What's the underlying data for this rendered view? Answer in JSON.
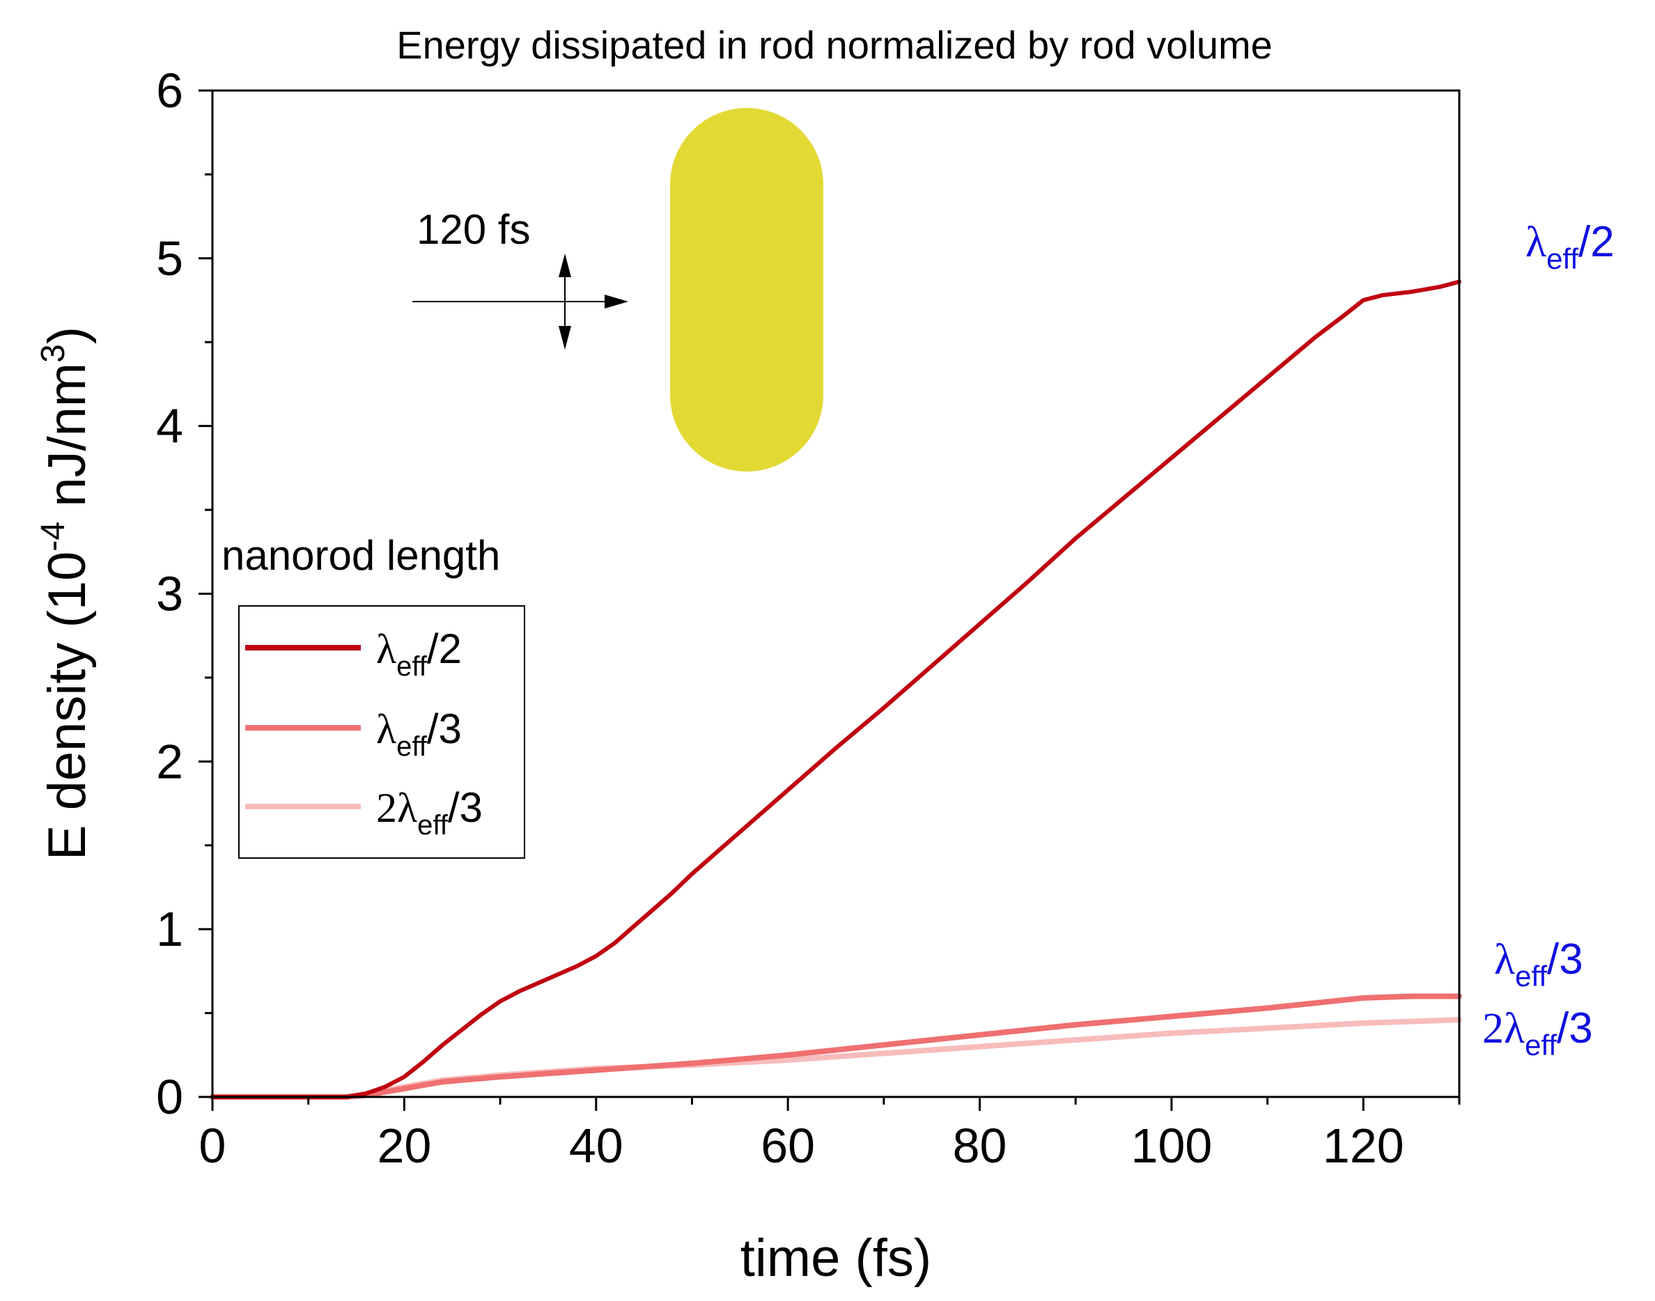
{
  "chart_data": {
    "type": "line",
    "title": "Energy dissipated in rod normalized by rod volume",
    "xlabel": "time (fs)",
    "ylabel": {
      "main": "E density (10",
      "exp": "-4",
      "unit": " nJ/nm",
      "unit_exp": "3",
      "close": ")"
    },
    "xlim": [
      0,
      130
    ],
    "ylim": [
      0,
      6
    ],
    "xticks": [
      0,
      20,
      40,
      60,
      80,
      100,
      120
    ],
    "yticks": [
      0,
      1,
      2,
      3,
      4,
      5,
      6
    ],
    "legend": {
      "title": "nanorod length",
      "position": "left-center"
    },
    "series": [
      {
        "name": "λeff/2",
        "label_pre": "",
        "label_base": "λ",
        "label_sub": "eff",
        "label_post": "/2",
        "color": "#c00010",
        "x": [
          0,
          10,
          14,
          16,
          18,
          20,
          22,
          24,
          26,
          28,
          30,
          32,
          34,
          36,
          38,
          40,
          42,
          44,
          46,
          48,
          50,
          55,
          60,
          65,
          70,
          75,
          80,
          85,
          90,
          95,
          100,
          105,
          110,
          115,
          118,
          120,
          122,
          125,
          128,
          130
        ],
        "y": [
          0,
          0,
          0,
          0.02,
          0.06,
          0.12,
          0.21,
          0.31,
          0.4,
          0.49,
          0.57,
          0.63,
          0.68,
          0.73,
          0.78,
          0.84,
          0.92,
          1.02,
          1.12,
          1.22,
          1.33,
          1.58,
          1.83,
          2.08,
          2.32,
          2.57,
          2.82,
          3.07,
          3.33,
          3.57,
          3.81,
          4.05,
          4.29,
          4.53,
          4.66,
          4.75,
          4.78,
          4.8,
          4.83,
          4.86
        ]
      },
      {
        "name": "λeff/3",
        "label_pre": "",
        "label_base": "λ",
        "label_sub": "eff",
        "label_post": "/3",
        "color": "#f07070",
        "x": [
          0,
          10,
          14,
          16,
          18,
          20,
          22,
          24,
          26,
          28,
          30,
          35,
          40,
          45,
          50,
          60,
          70,
          80,
          90,
          100,
          110,
          115,
          120,
          125,
          130
        ],
        "y": [
          0,
          0,
          0,
          0.01,
          0.03,
          0.05,
          0.07,
          0.09,
          0.1,
          0.11,
          0.12,
          0.14,
          0.16,
          0.18,
          0.2,
          0.25,
          0.31,
          0.37,
          0.43,
          0.48,
          0.53,
          0.56,
          0.59,
          0.6,
          0.6
        ]
      },
      {
        "name": "2λeff/3",
        "label_pre": "2",
        "label_base": "λ",
        "label_sub": "eff",
        "label_post": "/3",
        "color": "#f7bcbc",
        "x": [
          0,
          10,
          14,
          16,
          18,
          20,
          22,
          24,
          26,
          28,
          30,
          35,
          40,
          45,
          50,
          60,
          70,
          80,
          90,
          100,
          110,
          120,
          125,
          130
        ],
        "y": [
          0,
          0,
          0,
          0.02,
          0.04,
          0.06,
          0.08,
          0.1,
          0.11,
          0.12,
          0.13,
          0.15,
          0.17,
          0.18,
          0.19,
          0.22,
          0.26,
          0.3,
          0.34,
          0.38,
          0.41,
          0.44,
          0.45,
          0.46
        ]
      }
    ],
    "annotations": {
      "pulse_label": "120 fs",
      "nanorod_color": "#e3d935",
      "label_color": "#1010e0"
    }
  }
}
